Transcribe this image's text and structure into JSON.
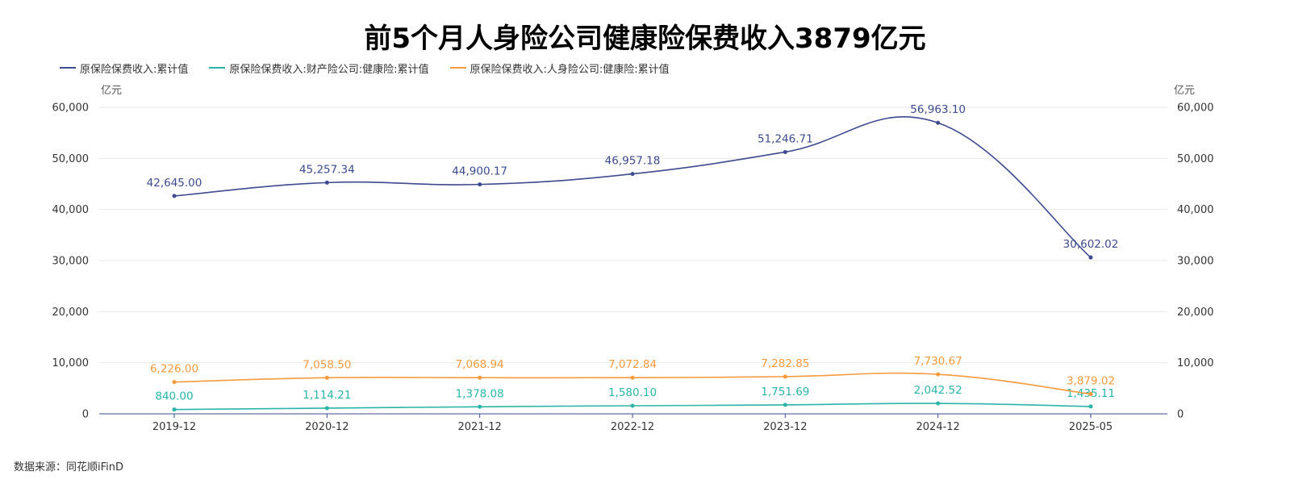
{
  "title": "前5个月人身险公司健康险保费收入3879亿元",
  "source": "数据来源：同花顺iFinD",
  "colors": {
    "series1": "#3d4a8f",
    "series2": "#2bb5a8",
    "series3": "#f59a3d",
    "grid": "#e8e8e8",
    "axis": "#3d4a8f"
  },
  "chart_data": {
    "type": "line",
    "title": "前5个月人身险公司健康险保费收入3879亿元",
    "categories": [
      "2019-12",
      "2020-12",
      "2021-12",
      "2022-12",
      "2023-12",
      "2024-12",
      "2025-05"
    ],
    "y_unit_left": "亿元",
    "y_unit_right": "亿元",
    "ylim": [
      0,
      60000
    ],
    "yticks": [
      "0",
      "10,000",
      "20,000",
      "30,000",
      "40,000",
      "50,000",
      "60,000"
    ],
    "grid": true,
    "legend_position": "top-left",
    "series": [
      {
        "name": "原保险保费收入:累计值",
        "color": "#3d4a8f",
        "values": [
          42645.0,
          45257.34,
          44900.17,
          46957.18,
          51246.71,
          56963.1,
          30602.02
        ],
        "labels": [
          "42,645.00",
          "45,257.34",
          "44,900.17",
          "46,957.18",
          "51,246.71",
          "56,963.10",
          "30,602.02"
        ]
      },
      {
        "name": "原保险保费收入:财产险公司:健康险:累计值",
        "color": "#2bb5a8",
        "values": [
          840.0,
          1114.21,
          1378.08,
          1580.1,
          1751.69,
          2042.52,
          1435.11
        ],
        "labels": [
          "840.00",
          "1,114.21",
          "1,378.08",
          "1,580.10",
          "1,751.69",
          "2,042.52",
          "1,435.11"
        ]
      },
      {
        "name": "原保险保费收入:人身险公司:健康险:累计值",
        "color": "#f59a3d",
        "values": [
          6226.0,
          7058.5,
          7068.94,
          7072.84,
          7282.85,
          7730.67,
          3879.02
        ],
        "labels": [
          "6,226.00",
          "7,058.50",
          "7,068.94",
          "7,072.84",
          "7,282.85",
          "7,730.67",
          "3,879.02"
        ]
      }
    ]
  }
}
